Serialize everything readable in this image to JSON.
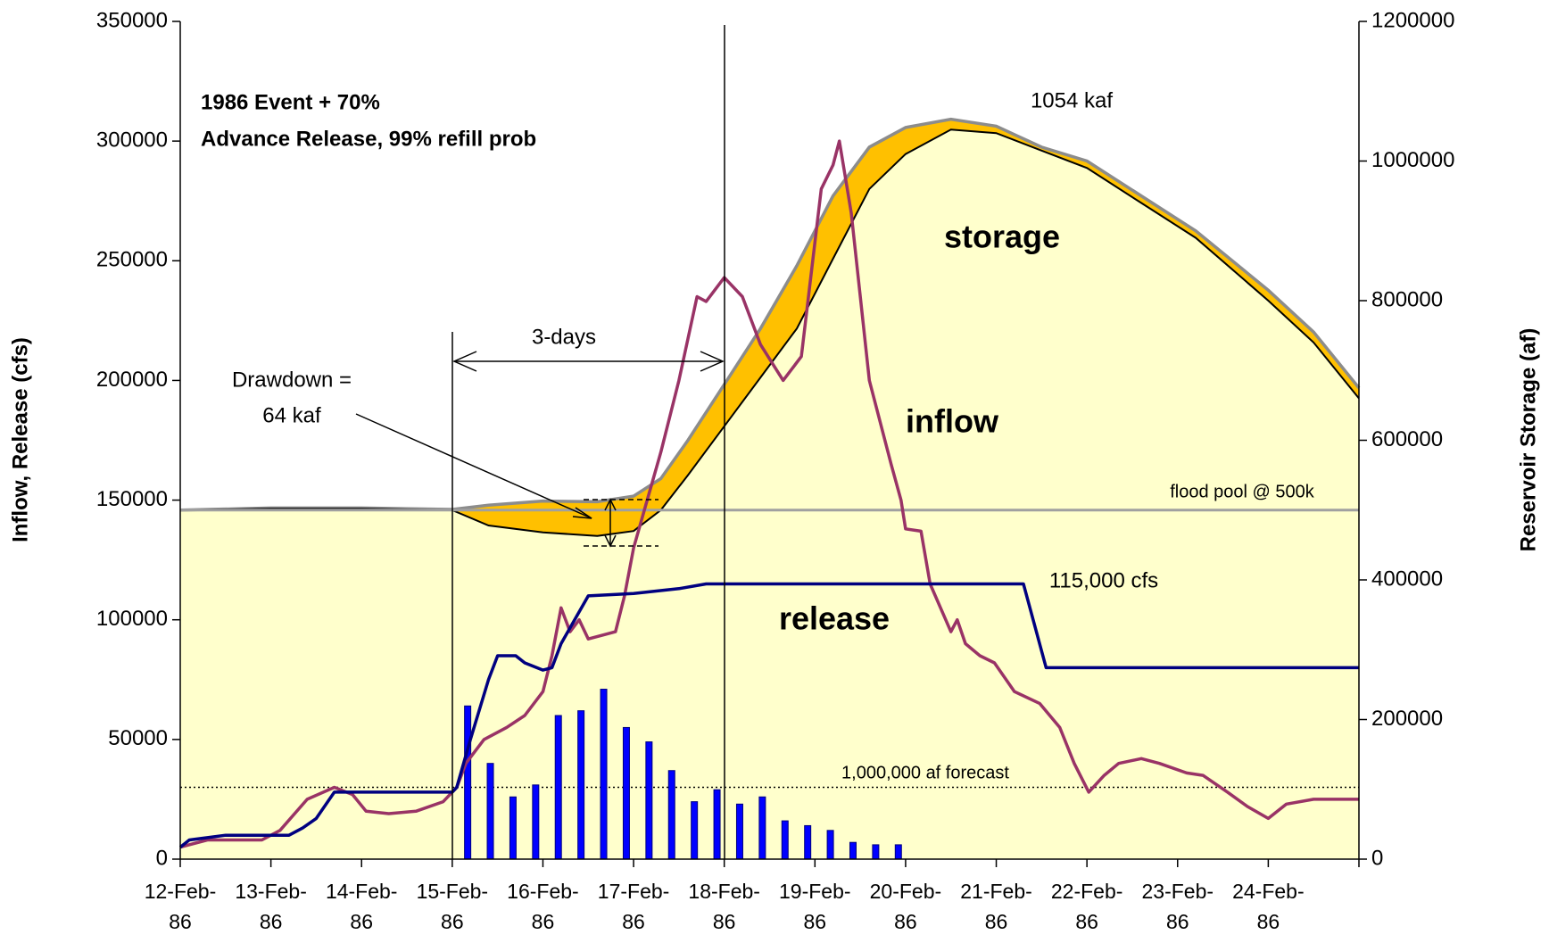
{
  "chart_data": {
    "type": "line",
    "title": "1986 Event + 70%",
    "subtitle": "Advance Release, 99% refill prob",
    "y_label": "Inflow, Release (cfs)",
    "y2_label": "Reservoir Storage (af)",
    "xlim": [
      0,
      13
    ],
    "xticks": [
      {
        "value": 0,
        "label": "12-Feb-86"
      },
      {
        "value": 1,
        "label": "13-Feb-86"
      },
      {
        "value": 2,
        "label": "14-Feb-86"
      },
      {
        "value": 3,
        "label": "15-Feb-86"
      },
      {
        "value": 4,
        "label": "16-Feb-86"
      },
      {
        "value": 5,
        "label": "17-Feb-86"
      },
      {
        "value": 6,
        "label": "18-Feb-86"
      },
      {
        "value": 7,
        "label": "19-Feb-86"
      },
      {
        "value": 8,
        "label": "20-Feb-86"
      },
      {
        "value": 9,
        "label": "21-Feb-86"
      },
      {
        "value": 10,
        "label": "22-Feb-86"
      },
      {
        "value": 11,
        "label": "23-Feb-86"
      },
      {
        "value": 12,
        "label": "24-Feb-86"
      }
    ],
    "ylim": [
      0,
      350000
    ],
    "yticks": [
      0,
      50000,
      100000,
      150000,
      200000,
      250000,
      300000,
      350000
    ],
    "y2lim": [
      0,
      1200000
    ],
    "y2ticks": [
      0,
      200000,
      400000,
      600000,
      800000,
      1000000,
      1200000
    ],
    "series": [
      {
        "name": "storage",
        "type": "band",
        "axis": "y2",
        "color": "#ffc000",
        "area_color": "#ffffcc",
        "line_color": "#8c8c8c",
        "low_line_color": "#000000",
        "x": [
          0,
          1,
          2,
          3,
          3.4,
          4,
          4.6,
          5,
          5.3,
          5.6,
          6,
          6.4,
          6.8,
          7.2,
          7.6,
          8,
          8.5,
          9,
          9.5,
          10,
          10.6,
          11.2,
          12,
          12.5,
          13
        ],
        "values": [
          500000,
          503000,
          503000,
          501000,
          507000,
          513000,
          512000,
          520000,
          545000,
          600000,
          680000,
          760000,
          850000,
          950000,
          1020000,
          1048000,
          1060000,
          1050000,
          1020000,
          1000000,
          950000,
          900000,
          815000,
          755000,
          675000
        ],
        "low": [
          500000,
          502000,
          502000,
          500000,
          478000,
          468000,
          463000,
          470000,
          500000,
          550000,
          620000,
          690000,
          760000,
          860000,
          960000,
          1010000,
          1045000,
          1040000,
          1015000,
          990000,
          940000,
          890000,
          800000,
          740000,
          660000
        ]
      },
      {
        "type": "bar",
        "color": "#0000ff",
        "x": [
          3.17,
          3.42,
          3.67,
          3.92,
          4.17,
          4.42,
          4.67,
          4.92,
          5.17,
          5.42,
          5.67,
          5.92,
          6.17,
          6.42,
          6.67,
          6.92,
          7.17,
          7.42,
          7.67,
          7.92
        ],
        "values": [
          64000,
          40000,
          26000,
          31000,
          60000,
          62000,
          71000,
          55000,
          49000,
          37000,
          24000,
          29000,
          23000,
          26000,
          16000,
          14000,
          12000,
          7000,
          6000,
          6000
        ]
      },
      {
        "name": "inflow",
        "type": "line",
        "color": "#993366",
        "x": [
          0,
          0.3,
          0.6,
          0.9,
          1.1,
          1.4,
          1.7,
          1.9,
          2.05,
          2.3,
          2.6,
          2.9,
          3.05,
          3.15,
          3.35,
          3.6,
          3.8,
          4.0,
          4.1,
          4.2,
          4.3,
          4.4,
          4.5,
          4.8,
          4.9,
          5.0,
          5.15,
          5.3,
          5.5,
          5.7,
          5.8,
          6.0,
          6.2,
          6.4,
          6.65,
          6.85,
          7.07,
          7.2,
          7.27,
          7.4,
          7.6,
          7.84,
          7.95,
          8.0,
          8.17,
          8.27,
          8.5,
          8.57,
          8.66,
          8.82,
          8.98,
          9.2,
          9.48,
          9.7,
          9.86,
          10.02,
          10.19,
          10.35,
          10.6,
          10.8,
          11.1,
          11.28,
          11.55,
          11.77,
          12.0,
          12.2,
          12.5,
          13
        ],
        "values": [
          5000,
          8000,
          8000,
          8000,
          12000,
          25000,
          30000,
          27000,
          20000,
          19000,
          20000,
          24000,
          30000,
          40000,
          50000,
          55000,
          60000,
          70000,
          85000,
          105000,
          95000,
          100000,
          92000,
          95000,
          110000,
          130000,
          150000,
          170000,
          200000,
          235000,
          233000,
          243000,
          235000,
          215000,
          200000,
          210000,
          280000,
          290000,
          300000,
          270000,
          200000,
          165000,
          150000,
          138000,
          137000,
          115000,
          95000,
          100000,
          90000,
          85000,
          82000,
          70000,
          65000,
          55000,
          40000,
          28000,
          35000,
          40000,
          42000,
          40000,
          36000,
          35000,
          28000,
          22000,
          17000,
          23000,
          25000,
          25000
        ]
      },
      {
        "name": "release",
        "type": "line",
        "color": "#000080",
        "x": [
          0,
          0.1,
          0.3,
          0.5,
          1.2,
          1.35,
          1.5,
          1.7,
          3.0,
          3.05,
          3.2,
          3.4,
          3.5,
          3.7,
          3.8,
          4.0,
          4.1,
          4.2,
          4.35,
          4.5,
          5.0,
          5.5,
          5.8,
          9.3,
          9.55,
          13
        ],
        "values": [
          5000,
          8000,
          9000,
          10000,
          10000,
          13000,
          17000,
          28000,
          28000,
          30000,
          50000,
          75000,
          85000,
          85000,
          82000,
          79000,
          80000,
          90000,
          100000,
          110000,
          111000,
          113000,
          115000,
          115000,
          80000,
          80000
        ]
      }
    ],
    "reference_lines": [
      {
        "label": "flood pool @ 500k",
        "value": 500000,
        "axis": "y2",
        "color": "#a0a0a0",
        "style": "solid"
      },
      {
        "label": "1,000,000 af forecast",
        "value": 30000,
        "axis": "y",
        "color": "#000000",
        "style": "dotted"
      }
    ],
    "annotations": [
      "1054 kaf",
      "115,000 cfs",
      "3-days",
      "Drawdown =",
      "64 kaf"
    ]
  }
}
